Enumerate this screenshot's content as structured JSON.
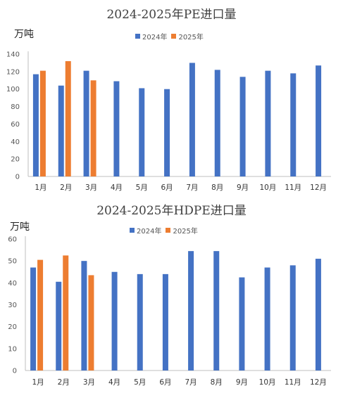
{
  "chart_data": [
    {
      "type": "bar",
      "title": "2024-2025年PE进口量",
      "ylabel": "万吨",
      "categories": [
        "1月",
        "2月",
        "3月",
        "4月",
        "5月",
        "6月",
        "7月",
        "8月",
        "9月",
        "10月",
        "11月",
        "12月"
      ],
      "yticks": [
        "0",
        "20",
        "40",
        "60",
        "80",
        "100",
        "120",
        "140"
      ],
      "ylim": [
        0,
        140
      ],
      "series": [
        {
          "name": "2024年",
          "color": "#4472C4",
          "values": [
            117,
            104,
            121,
            109,
            101,
            100,
            130,
            122,
            114,
            121,
            118,
            127
          ]
        },
        {
          "name": "2025年",
          "color": "#ED7D31",
          "values": [
            121,
            132,
            110,
            null,
            null,
            null,
            null,
            null,
            null,
            null,
            null,
            null
          ]
        }
      ],
      "legend_position": "top",
      "grid": false
    },
    {
      "type": "bar",
      "title": "2024-2025年HDPE进口量",
      "ylabel": "万吨",
      "categories": [
        "1月",
        "2月",
        "3月",
        "4月",
        "5月",
        "6月",
        "7月",
        "8月",
        "9月",
        "10月",
        "11月",
        "12月"
      ],
      "yticks": [
        "0",
        "10",
        "20",
        "30",
        "40",
        "50",
        "60"
      ],
      "ylim": [
        0,
        60
      ],
      "series": [
        {
          "name": "2024年",
          "color": "#4472C4",
          "values": [
            47,
            40.5,
            50,
            45,
            44,
            44,
            54.5,
            54.5,
            42.5,
            47,
            48,
            51
          ]
        },
        {
          "name": "2025年",
          "color": "#ED7D31",
          "values": [
            50.5,
            52.5,
            43.5,
            null,
            null,
            null,
            null,
            null,
            null,
            null,
            null,
            null
          ]
        }
      ],
      "legend_position": "top",
      "grid": false
    }
  ]
}
